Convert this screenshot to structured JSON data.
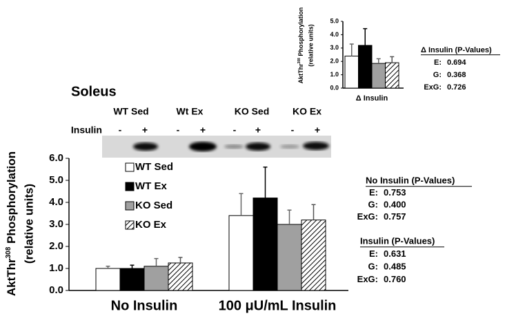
{
  "blot": {
    "title": "Soleus",
    "groups": [
      "WT Sed",
      "Wt Ex",
      "KO Sed",
      "KO Ex"
    ],
    "row_label": "Insulin",
    "lanes": [
      "-",
      "+",
      "-",
      "+",
      "-",
      "+",
      "-",
      "+"
    ]
  },
  "chart_data": [
    {
      "type": "bar",
      "categories": [
        "No Insulin",
        "100 μU/mL Insulin"
      ],
      "y_label": {
        "prefix": "AktThr",
        "sup": "308",
        "suffix": " Phosphorylation",
        "line2": "(relative units)"
      },
      "ylim": [
        0,
        6
      ],
      "yticks": [
        {
          "value": 0,
          "label": "0.0"
        },
        {
          "value": 1,
          "label": "1.0"
        },
        {
          "value": 2,
          "label": "2.0"
        },
        {
          "value": 3,
          "label": "3.0"
        },
        {
          "value": 4,
          "label": "4.0"
        },
        {
          "value": 5,
          "label": "5.0"
        },
        {
          "value": 6,
          "label": "6.0"
        }
      ],
      "legend": true,
      "series": [
        {
          "name": "WT Sed",
          "color": "#ffffff",
          "values": [
            1.0,
            3.4
          ],
          "errors": [
            0.1,
            1.0
          ]
        },
        {
          "name": "WT Ex",
          "color": "#000000",
          "values": [
            1.0,
            4.2
          ],
          "errors": [
            0.15,
            1.4
          ]
        },
        {
          "name": "KO Sed",
          "color": "#a0a0a0",
          "values": [
            1.1,
            3.0
          ],
          "errors": [
            0.35,
            0.65
          ]
        },
        {
          "name": "KO Ex",
          "color": "#ffffff",
          "hatch": true,
          "values": [
            1.25,
            3.2
          ],
          "errors": [
            0.25,
            0.7
          ]
        }
      ]
    },
    {
      "type": "bar",
      "x_label": "Δ Insulin",
      "y_label": {
        "prefix": "AktThr",
        "sup": "308",
        "suffix": " Phosphorylation",
        "line2": "(relative units)"
      },
      "ylim": [
        0,
        5
      ],
      "yticks": [
        {
          "value": 0,
          "label": "0.0"
        },
        {
          "value": 1,
          "label": "1.0"
        },
        {
          "value": 2,
          "label": "2.0"
        },
        {
          "value": 3,
          "label": "3.0"
        },
        {
          "value": 4,
          "label": "4.0"
        },
        {
          "value": 5,
          "label": "5.0"
        }
      ],
      "legend": false,
      "series": [
        {
          "name": "WT Sed",
          "color": "#ffffff",
          "values": [
            2.4
          ],
          "errors": [
            0.9
          ]
        },
        {
          "name": "WT Ex",
          "color": "#000000",
          "values": [
            3.2
          ],
          "errors": [
            1.25
          ]
        },
        {
          "name": "KO Sed",
          "color": "#a0a0a0",
          "values": [
            1.85
          ],
          "errors": [
            0.35
          ]
        },
        {
          "name": "KO Ex",
          "color": "#ffffff",
          "hatch": true,
          "values": [
            1.9
          ],
          "errors": [
            0.45
          ]
        }
      ]
    }
  ],
  "stats": [
    {
      "title": "Δ Insulin (P-Values)",
      "rows": [
        {
          "key": "E:",
          "value": "0.694"
        },
        {
          "key": "G:",
          "value": "0.368"
        },
        {
          "key": "ExG:",
          "value": "0.726"
        }
      ]
    },
    {
      "title": "No Insulin (P-Values)",
      "rows": [
        {
          "key": "E:",
          "value": "0.753"
        },
        {
          "key": "G:",
          "value": "0.400"
        },
        {
          "key": "ExG:",
          "value": "0.757"
        }
      ]
    },
    {
      "title": "Insulin  (P-Values)",
      "rows": [
        {
          "key": "E:",
          "value": "0.631"
        },
        {
          "key": "G:",
          "value": "0.485"
        },
        {
          "key": "ExG:",
          "value": "0.760"
        }
      ]
    }
  ]
}
